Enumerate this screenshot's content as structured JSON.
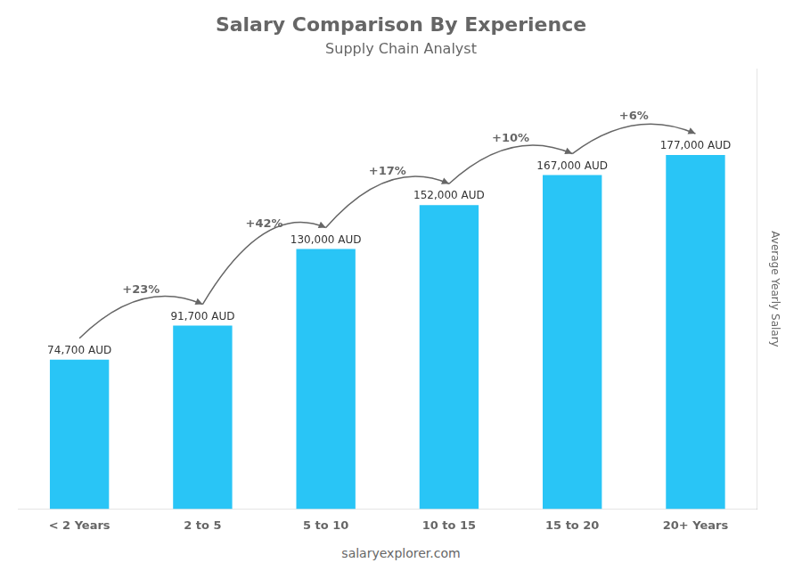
{
  "chart_data": {
    "type": "bar",
    "title": "Salary Comparison By Experience",
    "subtitle": "Supply Chain Analyst",
    "ylabel": "Average Yearly Salary",
    "footer": "salaryexplorer.com",
    "categories": [
      "< 2 Years",
      "2 to 5",
      "5 to 10",
      "10 to 15",
      "15 to 20",
      "20+ Years"
    ],
    "values": [
      74700,
      91700,
      130000,
      152000,
      167000,
      177000
    ],
    "value_labels": [
      "74,700 AUD",
      "91,700 AUD",
      "130,000 AUD",
      "152,000 AUD",
      "167,000 AUD",
      "177,000 AUD"
    ],
    "data_labels": true,
    "annotations": [
      "+23%",
      "+42%",
      "+17%",
      "+10%",
      "+6%"
    ],
    "color": "#29c5f6",
    "ylim": [
      0,
      220000
    ],
    "grid": false,
    "tick_labels": "x"
  }
}
